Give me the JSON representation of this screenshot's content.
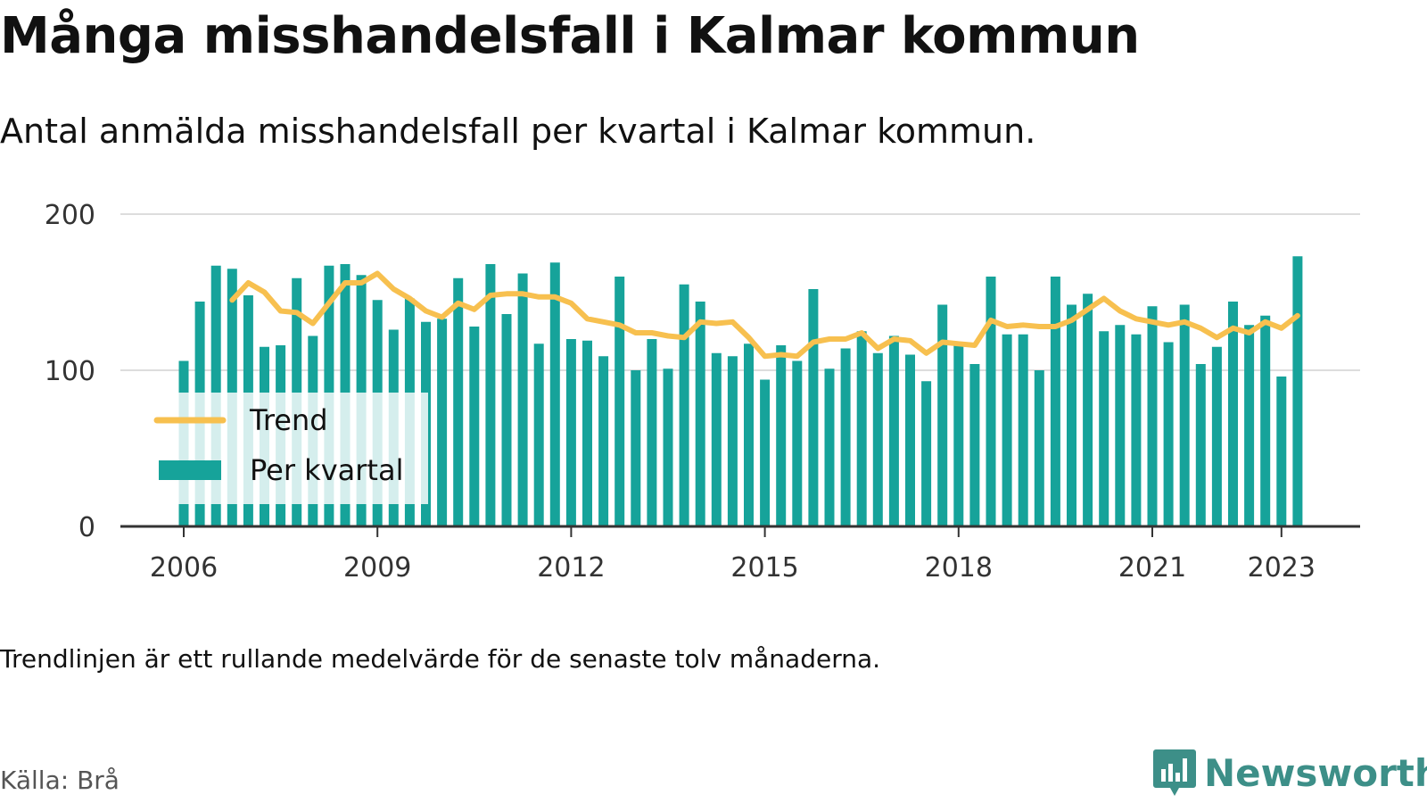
{
  "title": "Många misshandelsfall i Kalmar kommun",
  "subtitle": "Antal anmälda misshandelsfall per kvartal i Kalmar kommun.",
  "note": "Trendlinjen är ett rullande medelvärde för de senaste tolv månaderna.",
  "source": "Källa: Brå",
  "brand": {
    "name": "Newsworthy",
    "icon": "newsworthy-logo-icon"
  },
  "colors": {
    "bar": "#16a39a",
    "trend": "#f7c04f",
    "grid": "#dddddd",
    "axis": "#333333"
  },
  "chart_data": {
    "type": "bar",
    "start_quarter": "2006 Q1",
    "x_ticks": [
      "2006",
      "2009",
      "2012",
      "2015",
      "2018",
      "2021",
      "2023"
    ],
    "y_ticks": [
      "0",
      "100",
      "200"
    ],
    "ylim": [
      0,
      200
    ],
    "grid": true,
    "legend_position": "bottom-left",
    "series": [
      {
        "name": "Per kvartal",
        "type": "bar",
        "values": [
          106,
          144,
          167,
          165,
          148,
          115,
          116,
          159,
          122,
          167,
          168,
          161,
          145,
          126,
          146,
          131,
          133,
          159,
          128,
          168,
          136,
          162,
          117,
          169,
          120,
          119,
          109,
          160,
          100,
          120,
          101,
          155,
          144,
          111,
          109,
          117,
          94,
          116,
          106,
          152,
          101,
          114,
          125,
          111,
          122,
          110,
          93,
          142,
          117,
          104,
          160,
          123,
          123,
          100,
          160,
          142,
          149,
          125,
          129,
          123,
          141,
          118,
          142,
          104,
          115,
          144,
          129,
          135,
          96,
          173
        ]
      },
      {
        "name": "Trend",
        "type": "line",
        "values": [
          null,
          null,
          null,
          145,
          156,
          150,
          138,
          137,
          130,
          143,
          156,
          156,
          162,
          152,
          146,
          138,
          134,
          143,
          139,
          148,
          149,
          149,
          147,
          147,
          143,
          133,
          131,
          129,
          124,
          124,
          122,
          121,
          131,
          130,
          131,
          121,
          109,
          110,
          109,
          118,
          120,
          120,
          124,
          114,
          120,
          119,
          111,
          118,
          117,
          116,
          132,
          128,
          129,
          128,
          128,
          132,
          139,
          146,
          138,
          133,
          131,
          129,
          131,
          127,
          121,
          127,
          124,
          131,
          127,
          135
        ]
      }
    ]
  }
}
